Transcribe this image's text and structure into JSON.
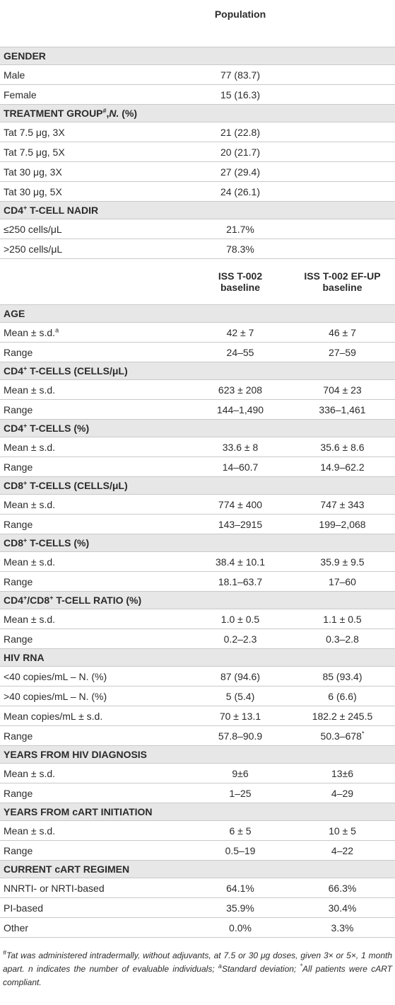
{
  "header1": {
    "col1": "Population"
  },
  "sections1": [
    {
      "title": [
        "GENDER"
      ],
      "rows": [
        [
          "Male",
          "77 (83.7)"
        ],
        [
          "Female",
          "15 (16.3)"
        ]
      ]
    },
    {
      "title": [
        "TREATMENT GROUP",
        {
          "sup": "#"
        },
        ",",
        {
          "i": "N."
        },
        " (%)"
      ],
      "rows": [
        [
          "Tat 7.5 μg, 3X",
          "21 (22.8)"
        ],
        [
          "Tat 7.5 μg, 5X",
          "20 (21.7)"
        ],
        [
          "Tat 30 μg, 3X",
          "27 (29.4)"
        ],
        [
          "Tat 30 μg, 5X",
          "24 (26.1)"
        ]
      ]
    },
    {
      "title": [
        "CD4",
        {
          "sup": "+"
        },
        " T-CELL NADIR"
      ],
      "rows": [
        [
          "≤250 cells/μL",
          "21.7%"
        ],
        [
          ">250 cells/μL",
          "78.3%"
        ]
      ]
    }
  ],
  "header2": {
    "col1": [
      "ISS T-002",
      "baseline"
    ],
    "col2": [
      "ISS T-002 EF-UP",
      "baseline"
    ]
  },
  "sections2": [
    {
      "title": [
        "AGE"
      ],
      "rows": [
        [
          [
            "Mean ± s.d.",
            {
              "sup": "a"
            }
          ],
          "42 ± 7",
          "46 ± 7"
        ],
        [
          "Range",
          "24–55",
          "27–59"
        ]
      ]
    },
    {
      "title": [
        "CD4",
        {
          "sup": "+"
        },
        " T-CELLS (CELLS/μL)"
      ],
      "rows": [
        [
          "Mean ± s.d.",
          "623 ± 208",
          "704 ± 23"
        ],
        [
          "Range",
          "144–1,490",
          "336–1,461"
        ]
      ]
    },
    {
      "title": [
        "CD4",
        {
          "sup": "+"
        },
        " T-CELLS (%)"
      ],
      "rows": [
        [
          "Mean ± s.d.",
          "33.6 ± 8",
          "35.6 ± 8.6"
        ],
        [
          "Range",
          "14–60.7",
          "14.9–62.2"
        ]
      ]
    },
    {
      "title": [
        "CD8",
        {
          "sup": "+"
        },
        " T-CELLS (CELLS/μL)"
      ],
      "rows": [
        [
          "Mean ± s.d.",
          "774 ± 400",
          "747 ± 343"
        ],
        [
          "Range",
          "143–2915",
          "199–2,068"
        ]
      ]
    },
    {
      "title": [
        "CD8",
        {
          "sup": "+"
        },
        " T-CELLS (%)"
      ],
      "rows": [
        [
          "Mean ± s.d.",
          "38.4 ± 10.1",
          "35.9 ± 9.5"
        ],
        [
          "Range",
          "18.1–63.7",
          "17–60"
        ]
      ]
    },
    {
      "title": [
        "CD4",
        {
          "sup": "+"
        },
        "/CD8",
        {
          "sup": "+"
        },
        " T-CELL RATIO (%)"
      ],
      "rows": [
        [
          "Mean ± s.d.",
          "1.0 ± 0.5",
          "1.1 ± 0.5"
        ],
        [
          "Range",
          "0.2–2.3",
          "0.3–2.8"
        ]
      ]
    },
    {
      "title": [
        "HIV RNA"
      ],
      "rows": [
        [
          "<40 copies/mL – N. (%)",
          "87 (94.6)",
          "85 (93.4)"
        ],
        [
          ">40 copies/mL – N. (%)",
          "5 (5.4)",
          "6 (6.6)"
        ],
        [
          "Mean copies/mL ± s.d.",
          "70 ± 13.1",
          "182.2 ± 245.5"
        ],
        [
          "Range",
          "57.8–90.9",
          [
            "50.3–678",
            {
              "sup": "*"
            }
          ]
        ]
      ]
    },
    {
      "title": [
        "YEARS FROM HIV DIAGNOSIS"
      ],
      "rows": [
        [
          "Mean ± s.d.",
          "9±6",
          "13±6"
        ],
        [
          "Range",
          "1–25",
          "4–29"
        ]
      ]
    },
    {
      "title": [
        "YEARS FROM cART INITIATION"
      ],
      "rows": [
        [
          "Mean ± s.d.",
          "6 ± 5",
          "10 ± 5"
        ],
        [
          "Range",
          "0.5–19",
          "4–22"
        ]
      ]
    },
    {
      "title": [
        "CURRENT cART REGIMEN"
      ],
      "rows": [
        [
          "NNRTI- or NRTI-based",
          "64.1%",
          "66.3%"
        ],
        [
          "PI-based",
          "35.9%",
          "30.4%"
        ],
        [
          "Other",
          "0.0%",
          "3.3%"
        ]
      ]
    }
  ],
  "footnote": [
    {
      "sup": "#"
    },
    "Tat was administered intradermally, without adjuvants, at 7.5 or 30 μg doses, given 3× or 5×, 1 month apart. n indicates the number of evaluable individuals; ",
    {
      "sup": "a"
    },
    "Standard deviation; ",
    {
      "sup": "*"
    },
    "All patients were cART compliant."
  ]
}
